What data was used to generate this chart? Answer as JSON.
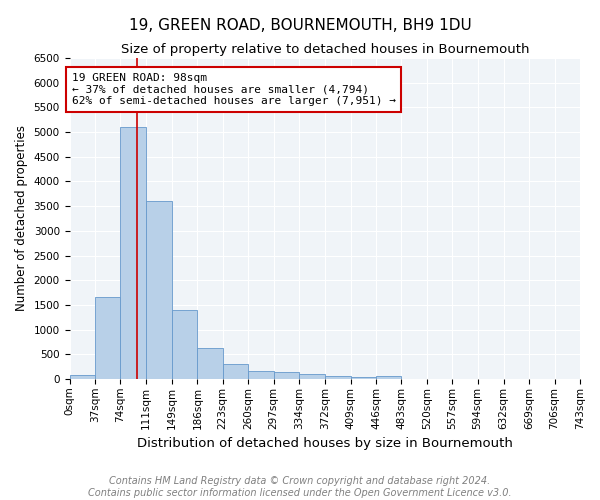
{
  "title": "19, GREEN ROAD, BOURNEMOUTH, BH9 1DU",
  "subtitle": "Size of property relative to detached houses in Bournemouth",
  "xlabel": "Distribution of detached houses by size in Bournemouth",
  "ylabel": "Number of detached properties",
  "bin_edges": [
    0,
    37,
    74,
    111,
    149,
    186,
    223,
    260,
    297,
    334,
    372,
    409,
    446,
    483,
    520,
    557,
    594,
    632,
    669,
    706,
    743
  ],
  "counts": [
    75,
    1650,
    5100,
    3600,
    1400,
    620,
    300,
    160,
    130,
    90,
    50,
    30,
    60,
    0,
    0,
    0,
    0,
    0,
    0,
    0
  ],
  "bar_color": "#b8d0e8",
  "bar_edge_color": "#6699cc",
  "property_size": 98,
  "vline_color": "#cc0000",
  "annotation_box_color": "#cc0000",
  "annotation_line1": "19 GREEN ROAD: 98sqm",
  "annotation_line2": "← 37% of detached houses are smaller (4,794)",
  "annotation_line3": "62% of semi-detached houses are larger (7,951) →",
  "ylim": [
    0,
    6500
  ],
  "yticks": [
    0,
    500,
    1000,
    1500,
    2000,
    2500,
    3000,
    3500,
    4000,
    4500,
    5000,
    5500,
    6000,
    6500
  ],
  "footer_line1": "Contains HM Land Registry data © Crown copyright and database right 2024.",
  "footer_line2": "Contains public sector information licensed under the Open Government Licence v3.0.",
  "title_fontsize": 11,
  "subtitle_fontsize": 9.5,
  "xlabel_fontsize": 9.5,
  "ylabel_fontsize": 8.5,
  "tick_label_fontsize": 7.5,
  "annotation_fontsize": 8,
  "footer_fontsize": 7,
  "bg_color": "#f0f4f8"
}
